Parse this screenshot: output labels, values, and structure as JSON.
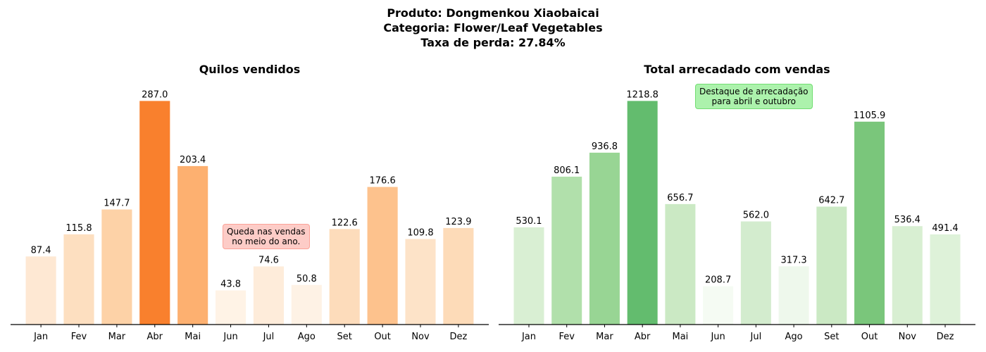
{
  "header": {
    "line1": "Produto: Dongmenkou Xiaobaicai",
    "line2": "Categoria: Flower/Leaf Vegetables",
    "line3": "Taxa de perda: 27.84%"
  },
  "annotations": {
    "left": {
      "line1": "Queda nas vendas",
      "line2": "no meio do ano."
    },
    "right": {
      "line1": "Destaque de arrecadação",
      "line2": "para abril e outubro"
    }
  },
  "chart_data": [
    {
      "type": "bar",
      "title": "Quilos vendidos",
      "categories": [
        "Jan",
        "Fev",
        "Mar",
        "Abr",
        "Mai",
        "Jun",
        "Jul",
        "Ago",
        "Set",
        "Out",
        "Nov",
        "Dez"
      ],
      "values": [
        87.4,
        115.8,
        147.7,
        287.0,
        203.4,
        43.8,
        74.6,
        50.8,
        122.6,
        176.6,
        109.8,
        123.9
      ],
      "labels": [
        "87.4",
        "115.8",
        "147.7",
        "287.0",
        "203.4",
        "43.8",
        "74.6",
        "50.8",
        "122.6",
        "176.6",
        "109.8",
        "123.9"
      ],
      "colormap": "Oranges",
      "colors": [
        "#fee8d3",
        "#fddfc0",
        "#fdd2a7",
        "#f9802d",
        "#fdb070",
        "#fff3e6",
        "#feecda",
        "#fef2e5",
        "#fddcbb",
        "#fdc28d",
        "#fde3c8",
        "#fddbb8"
      ],
      "ylim": [
        0,
        300
      ],
      "xlabel": "",
      "ylabel": "",
      "grid": false,
      "legend": "none"
    },
    {
      "type": "bar",
      "title": "Total arrecadado com vendas",
      "categories": [
        "Jan",
        "Fev",
        "Mar",
        "Abr",
        "Mai",
        "Jun",
        "Jul",
        "Ago",
        "Set",
        "Out",
        "Nov",
        "Dez"
      ],
      "values": [
        530.1,
        806.1,
        936.8,
        1218.8,
        656.7,
        208.7,
        562.0,
        317.3,
        642.7,
        1105.9,
        536.4,
        491.4
      ],
      "labels": [
        "530.1",
        "806.1",
        "936.8",
        "1218.8",
        "656.7",
        "208.7",
        "562.0",
        "317.3",
        "642.7",
        "1105.9",
        "536.4",
        "491.4"
      ],
      "colormap": "Greens",
      "colors": [
        "#d9efd3",
        "#b1e0ab",
        "#98d594",
        "#63bc6e",
        "#cbe9c4",
        "#f5fbf3",
        "#d3ecce",
        "#eef8ec",
        "#cbe9c4",
        "#7ac67b",
        "#d8efd2",
        "#def2d9"
      ],
      "ylim": [
        0,
        1274
      ],
      "xlabel": "",
      "ylabel": "",
      "grid": false,
      "legend": "none"
    }
  ]
}
